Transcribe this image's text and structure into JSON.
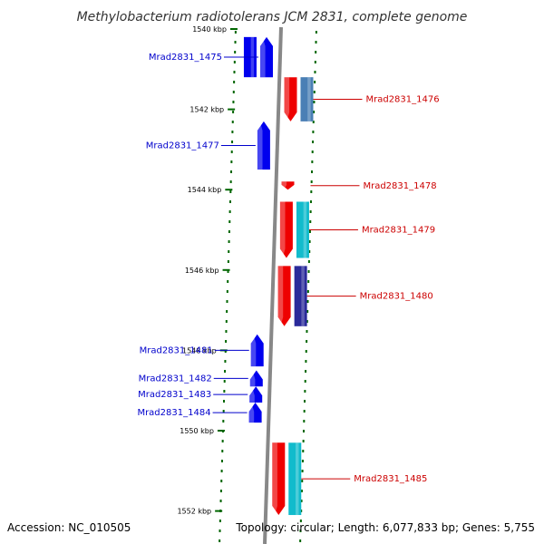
{
  "title": "Methylobacterium radiotolerans JCM 2831, complete genome",
  "footer": {
    "accession": "Accession: NC_010505",
    "topology": "Topology: circular; Length: 6,077,833 bp; Genes: 5,755"
  },
  "colors": {
    "forward_gene": "#0000ee",
    "reverse_gene": "#ee0000",
    "cyan_feature": "#11bbcc",
    "steel_feature": "#4a7fb5",
    "indigo_feature": "#2a2a9a",
    "axis": "#888888",
    "ticks": "#006600",
    "left_label": "#0000cc",
    "right_label": "#cc0000"
  },
  "scale": {
    "unit": "kbp",
    "ticks": [
      {
        "value": 1540,
        "label": "1540 kbp"
      },
      {
        "value": 1542,
        "label": "1542 kbp"
      },
      {
        "value": 1544,
        "label": "1544 kbp"
      },
      {
        "value": 1546,
        "label": "1546 kbp"
      },
      {
        "value": 1548,
        "label": "1548 kbp"
      },
      {
        "value": 1550,
        "label": "1550 kbp"
      },
      {
        "value": 1552,
        "label": "1552 kbp"
      }
    ]
  },
  "genes": [
    {
      "id": "Mrad2831_1475",
      "strand": "+",
      "start": 1540.2,
      "end": 1541.2
    },
    {
      "id": "Mrad2831_1476",
      "strand": "-",
      "start": 1541.2,
      "end": 1542.3
    },
    {
      "id": "Mrad2831_1477",
      "strand": "+",
      "start": 1542.3,
      "end": 1543.5
    },
    {
      "id": "Mrad2831_1478",
      "strand": "-",
      "start": 1543.8,
      "end": 1544.0
    },
    {
      "id": "Mrad2831_1479",
      "strand": "-",
      "start": 1544.3,
      "end": 1545.7
    },
    {
      "id": "Mrad2831_1480",
      "strand": "-",
      "start": 1545.9,
      "end": 1547.4
    },
    {
      "id": "Mrad2831_1481",
      "strand": "+",
      "start": 1547.6,
      "end": 1548.4
    },
    {
      "id": "Mrad2831_1482",
      "strand": "+",
      "start": 1548.5,
      "end": 1548.9
    },
    {
      "id": "Mrad2831_1483",
      "strand": "+",
      "start": 1548.9,
      "end": 1549.3
    },
    {
      "id": "Mrad2831_1484",
      "strand": "+",
      "start": 1549.3,
      "end": 1549.8
    },
    {
      "id": "Mrad2831_1485",
      "strand": "-",
      "start": 1550.3,
      "end": 1552.1
    }
  ]
}
